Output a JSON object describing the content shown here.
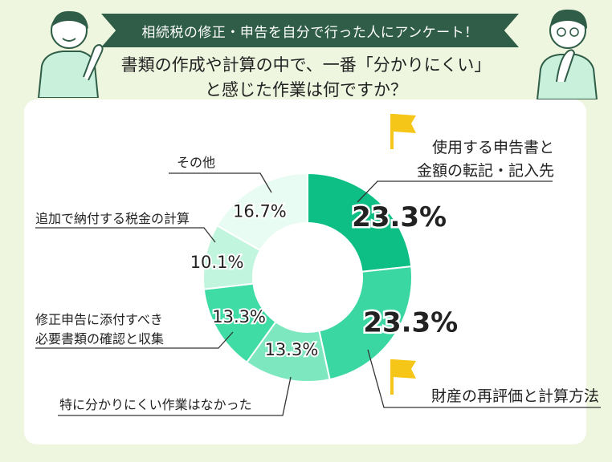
{
  "banner": {
    "text": "相続税の修正・申告を自分で行った人にアンケート！"
  },
  "question": {
    "line1": "書類の作成や計算の中で、一番「分かりにくい」",
    "line2": "と感じた作業は何ですか？"
  },
  "colors": {
    "banner_bg": "#2f5d47",
    "background": "#eef6df",
    "flag": "#f5c518",
    "slices": [
      "#0dbf84",
      "#3bd7a2",
      "#7de7bf",
      "#3fdca6",
      "#c2f5de",
      "#e9fcf3"
    ]
  },
  "chart_data": {
    "type": "pie",
    "variant": "donut",
    "start_angle_deg": 0,
    "direction": "clockwise",
    "slices": [
      {
        "label_lines": [
          "使用する申告書と",
          "金額の転記・記入先"
        ],
        "value": 23.3,
        "value_text": "23.3%",
        "highlight": true
      },
      {
        "label_lines": [
          "財産の再評価と計算方法"
        ],
        "value": 23.3,
        "value_text": "23.3%",
        "highlight": true
      },
      {
        "label_lines": [
          "特に分かりにくい作業はなかった"
        ],
        "value": 13.3,
        "value_text": "13.3%",
        "highlight": false
      },
      {
        "label_lines": [
          "修正申告に添付すべき",
          "必要書類の確認と収集"
        ],
        "value": 13.3,
        "value_text": "13.3%",
        "highlight": false
      },
      {
        "label_lines": [
          "追加で納付する税金の計算"
        ],
        "value": 10.1,
        "value_text": "10.1%",
        "highlight": false
      },
      {
        "label_lines": [
          "その他"
        ],
        "value": 16.7,
        "value_text": "16.7%",
        "highlight": false
      }
    ]
  }
}
